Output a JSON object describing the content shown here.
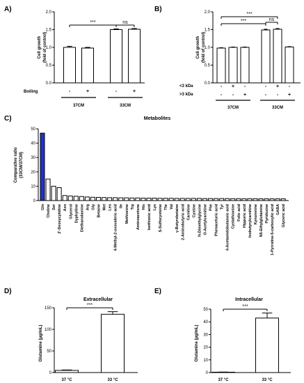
{
  "chart_data": [
    {
      "panel": "A)",
      "type": "bar",
      "ylabel": "Cell growth (fold of control)",
      "ylim": [
        0,
        2.0
      ],
      "yticks": [
        "0.0",
        "0.5",
        "1.0",
        "1.5",
        "2.0"
      ],
      "factor_label": "Boiling",
      "factor_signs": [
        "-",
        "+",
        "-",
        "+"
      ],
      "values": [
        1.0,
        0.98,
        1.5,
        1.51
      ],
      "errors": [
        0.03,
        0.02,
        0.02,
        0.02
      ],
      "groups": [
        {
          "label": "37CM",
          "bars": [
            0,
            1
          ]
        },
        {
          "label": "33CM",
          "bars": [
            2,
            3
          ]
        }
      ],
      "annotations": [
        {
          "text": "***",
          "from": 0,
          "to": 2
        },
        {
          "text": "ns",
          "from": 2,
          "to": 3
        }
      ],
      "accent": "#e8281e"
    },
    {
      "panel": "B)",
      "type": "bar",
      "ylabel": "Cell growth (fold of control)",
      "ylim": [
        0,
        2.0
      ],
      "yticks": [
        "0.0",
        "0.5",
        "1.0",
        "1.5",
        "2.0"
      ],
      "factor_labels": [
        "<3 kDa",
        ">3 kDa"
      ],
      "factor_signs": [
        [
          "-",
          "+",
          "-",
          "-",
          "+",
          "-"
        ],
        [
          "-",
          "-",
          "+",
          "-",
          "-",
          "+"
        ]
      ],
      "values": [
        0.98,
        1.0,
        1.0,
        1.49,
        1.51,
        1.01
      ],
      "errors": [
        0.01,
        0.01,
        0.01,
        0.02,
        0.02,
        0.01
      ],
      "groups": [
        {
          "label": "37CM",
          "bars": [
            0,
            2
          ]
        },
        {
          "label": "33CM",
          "bars": [
            3,
            5
          ]
        }
      ],
      "annotations": [
        {
          "text": "***",
          "from": 0,
          "to": 4
        },
        {
          "text": "ns",
          "from": 3,
          "to": 4
        },
        {
          "text": "***",
          "from": 0,
          "to": 3
        }
      ],
      "accent": "#e8281e"
    },
    {
      "panel": "C)",
      "type": "bar",
      "title": "Metabolites",
      "ylabel": "Comparative ratio (33CM/37CM)",
      "ylim": [
        0,
        50
      ],
      "yticks": [
        "0",
        "10",
        "20",
        "30",
        "40",
        "50"
      ],
      "categories": [
        "Gln",
        "Choline",
        "Ser",
        "2'-Deoxycytidine",
        "Asn",
        "Glycerol",
        "Dyphylline",
        "Diethanolamine",
        "Arg",
        "Gly",
        "Betaine",
        "Met",
        "Leu",
        "4-Methyl-2-oxovaleric acid",
        "Ile",
        "Methionine",
        "Trp",
        "Aminoacetone",
        "His",
        "Isethionic acid",
        "Lys",
        "S-Sulfocysteine",
        "Thr",
        "Val",
        "γ-Butyrobetaine",
        "2-Aminobutyric acid",
        "Carnitine",
        "Cystine",
        "N-Dimethylglycine",
        "O-Acetylcarnitine",
        "Phe",
        "Phenaceturic acid",
        "Tyr",
        "4-Acetamidobutanoic acid",
        "Cystathionine",
        "Folic acid",
        "Hippuric acid",
        "Isobutyrylcarnitine",
        "Kynurenine",
        "N5-Ethylglutamine",
        "Pyridoxine",
        "1-Pyrroline-5-carboxylic acid",
        "GABA",
        "Glyceric acid"
      ],
      "values": [
        47,
        15,
        10,
        9,
        3.5,
        3.2,
        3,
        2.8,
        2.5,
        2.3,
        2.2,
        2.1,
        2,
        2,
        1.9,
        1.9,
        1.8,
        1.8,
        1.7,
        1.7,
        1.7,
        1.6,
        1.6,
        1.6,
        1.5,
        1.5,
        1.5,
        1.5,
        1.5,
        1.4,
        1.4,
        1.4,
        1.4,
        1.4,
        1.3,
        1.3,
        1.3,
        1.3,
        1.3,
        1.2,
        1.2,
        1.2,
        1.2,
        1.2
      ],
      "highlight_index": 0,
      "highlight_color": "#1f32c8"
    },
    {
      "panel": "D)",
      "type": "bar",
      "title": "Extracellular",
      "ylabel": "Glutamine (μg/mL)",
      "ylim": [
        0,
        150
      ],
      "yticks": [
        "0",
        "50",
        "100",
        "150"
      ],
      "categories": [
        "37 °C",
        "33 °C"
      ],
      "values": [
        5,
        135
      ],
      "errors": [
        1,
        6
      ],
      "annotations": [
        {
          "text": "***",
          "from": 0,
          "to": 1
        }
      ],
      "accent": "#e8281e"
    },
    {
      "panel": "E)",
      "type": "bar",
      "title": "Intracellular",
      "ylabel": "Glutamine (μg/mL)",
      "ylim": [
        0,
        50
      ],
      "yticks": [
        "0",
        "10",
        "20",
        "30",
        "40",
        "50"
      ],
      "categories": [
        "37 °C",
        "33 °C"
      ],
      "values": [
        0.3,
        43
      ],
      "errors": [
        0.1,
        4
      ],
      "annotations": [
        {
          "text": "***",
          "from": 0,
          "to": 1
        }
      ],
      "accent": "#e8281e"
    }
  ]
}
